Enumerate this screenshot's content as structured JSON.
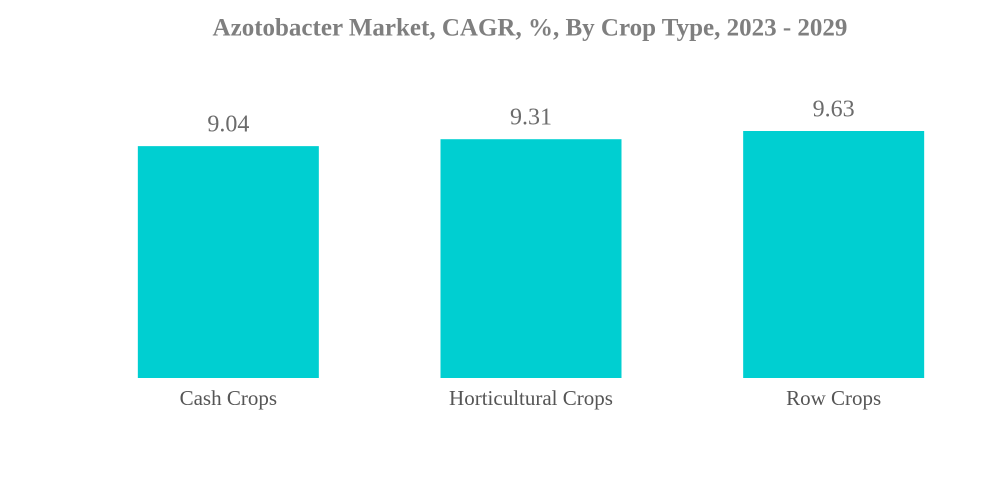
{
  "chart_data": {
    "type": "bar",
    "title": "Azotobacter Market, CAGR, %, By Crop Type, 2023 - 2029",
    "categories": [
      "Cash Crops",
      "Horticultural Crops",
      "Row Crops"
    ],
    "values": [
      9.04,
      9.31,
      9.63
    ],
    "color": "#00cfd1"
  }
}
